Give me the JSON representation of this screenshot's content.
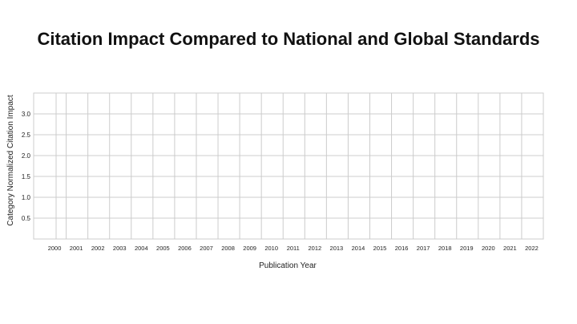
{
  "chart_data": {
    "type": "line",
    "title": "Citation Impact Compared to National and Global Standards",
    "xlabel": "Publication Year",
    "ylabel": "Category Normalized Citation Impact",
    "x": [
      "2000",
      "2001",
      "2002",
      "2003",
      "2004",
      "2005",
      "2006",
      "2007",
      "2008",
      "2009",
      "2010",
      "2011",
      "2012",
      "2013",
      "2014",
      "2015",
      "2016",
      "2017",
      "2018",
      "2019",
      "2020",
      "2021",
      "2022"
    ],
    "yticks": [
      "0.5",
      "1.0",
      "1.5",
      "2.0",
      "2.5",
      "3.0"
    ],
    "ylim": [
      0.0,
      3.5
    ],
    "series": [],
    "grid": true,
    "legend": "none"
  },
  "colors": {
    "grid": "#cccccc",
    "axis_text": "#222222",
    "title": "#111111"
  }
}
